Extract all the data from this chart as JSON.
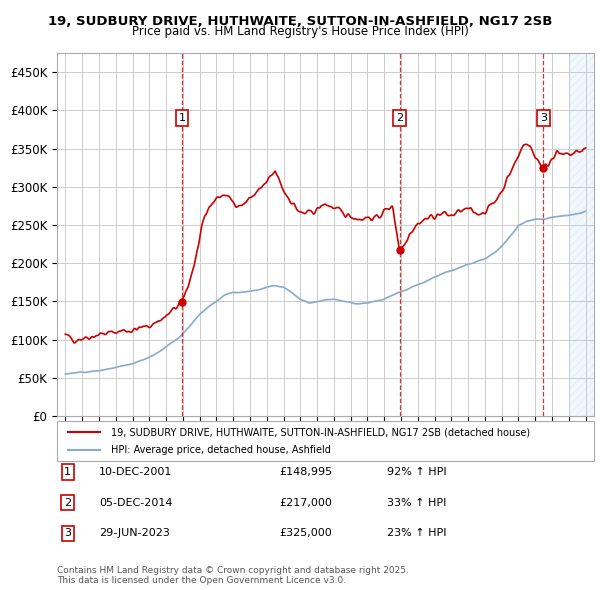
{
  "title_line1": "19, SUDBURY DRIVE, HUTHWAITE, SUTTON-IN-ASHFIELD, NG17 2SB",
  "title_line2": "Price paid vs. HM Land Registry's House Price Index (HPI)",
  "xlim": [
    1994.5,
    2026.5
  ],
  "ylim": [
    0,
    475000
  ],
  "yticks": [
    0,
    50000,
    100000,
    150000,
    200000,
    250000,
    300000,
    350000,
    400000,
    450000
  ],
  "ytick_labels": [
    "£0",
    "£50K",
    "£100K",
    "£150K",
    "£200K",
    "£250K",
    "£300K",
    "£350K",
    "£400K",
    "£450K"
  ],
  "xticks": [
    1995,
    1996,
    1997,
    1998,
    1999,
    2000,
    2001,
    2002,
    2003,
    2004,
    2005,
    2006,
    2007,
    2008,
    2009,
    2010,
    2011,
    2012,
    2013,
    2014,
    2015,
    2016,
    2017,
    2018,
    2019,
    2020,
    2021,
    2022,
    2023,
    2024,
    2025,
    2026
  ],
  "sale_dates": [
    2001.94,
    2014.92,
    2023.49
  ],
  "sale_prices": [
    148995,
    217000,
    325000
  ],
  "sale_labels": [
    "1",
    "2",
    "3"
  ],
  "sale_info": [
    {
      "label": "1",
      "date": "10-DEC-2001",
      "price": "£148,995",
      "hpi": "92% ↑ HPI"
    },
    {
      "label": "2",
      "date": "05-DEC-2014",
      "price": "£217,000",
      "hpi": "33% ↑ HPI"
    },
    {
      "label": "3",
      "date": "29-JUN-2023",
      "price": "£325,000",
      "hpi": "23% ↑ HPI"
    }
  ],
  "red_color": "#cc0000",
  "blue_color": "#88aacc",
  "legend_red_label": "19, SUDBURY DRIVE, HUTHWAITE, SUTTON-IN-ASHFIELD, NG17 2SB (detached house)",
  "legend_blue_label": "HPI: Average price, detached house, Ashfield",
  "footer": "Contains HM Land Registry data © Crown copyright and database right 2025.\nThis data is licensed under the Open Government Licence v3.0.",
  "bg_color": "#ffffff",
  "grid_color": "#cccccc",
  "hatch_start": 2025.0,
  "red_anchors": [
    [
      1995.0,
      105000
    ],
    [
      1995.5,
      100000
    ],
    [
      1996.0,
      102000
    ],
    [
      1996.5,
      104000
    ],
    [
      1997.0,
      107000
    ],
    [
      1997.5,
      108000
    ],
    [
      1998.0,
      110000
    ],
    [
      1998.5,
      112000
    ],
    [
      1999.0,
      112000
    ],
    [
      1999.5,
      115000
    ],
    [
      2000.0,
      118000
    ],
    [
      2000.5,
      124000
    ],
    [
      2001.0,
      130000
    ],
    [
      2001.5,
      140000
    ],
    [
      2001.94,
      148995
    ],
    [
      2002.3,
      170000
    ],
    [
      2002.7,
      200000
    ],
    [
      2003.0,
      230000
    ],
    [
      2003.3,
      260000
    ],
    [
      2003.6,
      275000
    ],
    [
      2004.0,
      285000
    ],
    [
      2004.5,
      290000
    ],
    [
      2005.0,
      280000
    ],
    [
      2005.5,
      275000
    ],
    [
      2006.0,
      285000
    ],
    [
      2006.5,
      295000
    ],
    [
      2007.0,
      305000
    ],
    [
      2007.5,
      320000
    ],
    [
      2008.0,
      295000
    ],
    [
      2008.5,
      280000
    ],
    [
      2009.0,
      265000
    ],
    [
      2009.5,
      265000
    ],
    [
      2010.0,
      270000
    ],
    [
      2010.5,
      278000
    ],
    [
      2011.0,
      272000
    ],
    [
      2011.5,
      265000
    ],
    [
      2012.0,
      262000
    ],
    [
      2012.5,
      258000
    ],
    [
      2013.0,
      260000
    ],
    [
      2013.5,
      258000
    ],
    [
      2014.0,
      268000
    ],
    [
      2014.5,
      275000
    ],
    [
      2014.92,
      217000
    ],
    [
      2015.2,
      225000
    ],
    [
      2015.5,
      240000
    ],
    [
      2016.0,
      252000
    ],
    [
      2016.5,
      258000
    ],
    [
      2017.0,
      262000
    ],
    [
      2017.5,
      265000
    ],
    [
      2018.0,
      262000
    ],
    [
      2018.5,
      268000
    ],
    [
      2019.0,
      270000
    ],
    [
      2019.5,
      265000
    ],
    [
      2020.0,
      268000
    ],
    [
      2020.5,
      278000
    ],
    [
      2021.0,
      295000
    ],
    [
      2021.5,
      318000
    ],
    [
      2022.0,
      340000
    ],
    [
      2022.3,
      358000
    ],
    [
      2022.7,
      352000
    ],
    [
      2023.0,
      340000
    ],
    [
      2023.49,
      325000
    ],
    [
      2023.8,
      330000
    ],
    [
      2024.0,
      340000
    ],
    [
      2024.3,
      345000
    ],
    [
      2024.6,
      340000
    ],
    [
      2025.0,
      342000
    ],
    [
      2025.5,
      345000
    ],
    [
      2026.0,
      350000
    ]
  ],
  "blue_anchors": [
    [
      1995.0,
      55000
    ],
    [
      1995.5,
      56000
    ],
    [
      1996.0,
      57000
    ],
    [
      1996.5,
      58000
    ],
    [
      1997.0,
      59000
    ],
    [
      1997.5,
      61000
    ],
    [
      1998.0,
      63000
    ],
    [
      1998.5,
      65000
    ],
    [
      1999.0,
      68000
    ],
    [
      1999.5,
      72000
    ],
    [
      2000.0,
      77000
    ],
    [
      2000.5,
      83000
    ],
    [
      2001.0,
      90000
    ],
    [
      2001.5,
      98000
    ],
    [
      2002.0,
      108000
    ],
    [
      2002.5,
      120000
    ],
    [
      2003.0,
      132000
    ],
    [
      2003.5,
      142000
    ],
    [
      2004.0,
      150000
    ],
    [
      2004.5,
      158000
    ],
    [
      2005.0,
      162000
    ],
    [
      2005.5,
      162000
    ],
    [
      2006.0,
      163000
    ],
    [
      2006.5,
      165000
    ],
    [
      2007.0,
      168000
    ],
    [
      2007.5,
      170000
    ],
    [
      2008.0,
      168000
    ],
    [
      2008.5,
      162000
    ],
    [
      2009.0,
      152000
    ],
    [
      2009.5,
      148000
    ],
    [
      2010.0,
      150000
    ],
    [
      2010.5,
      152000
    ],
    [
      2011.0,
      153000
    ],
    [
      2011.5,
      150000
    ],
    [
      2012.0,
      148000
    ],
    [
      2012.5,
      147000
    ],
    [
      2013.0,
      148000
    ],
    [
      2013.5,
      150000
    ],
    [
      2014.0,
      153000
    ],
    [
      2014.5,
      158000
    ],
    [
      2014.92,
      162000
    ],
    [
      2015.5,
      167000
    ],
    [
      2016.0,
      172000
    ],
    [
      2016.5,
      177000
    ],
    [
      2017.0,
      182000
    ],
    [
      2017.5,
      186000
    ],
    [
      2018.0,
      190000
    ],
    [
      2018.5,
      194000
    ],
    [
      2019.0,
      198000
    ],
    [
      2019.5,
      202000
    ],
    [
      2020.0,
      205000
    ],
    [
      2020.5,
      212000
    ],
    [
      2021.0,
      222000
    ],
    [
      2021.5,
      235000
    ],
    [
      2022.0,
      248000
    ],
    [
      2022.5,
      255000
    ],
    [
      2023.0,
      257000
    ],
    [
      2023.5,
      258000
    ],
    [
      2024.0,
      260000
    ],
    [
      2024.5,
      262000
    ],
    [
      2025.0,
      263000
    ],
    [
      2025.5,
      265000
    ],
    [
      2026.0,
      268000
    ]
  ]
}
